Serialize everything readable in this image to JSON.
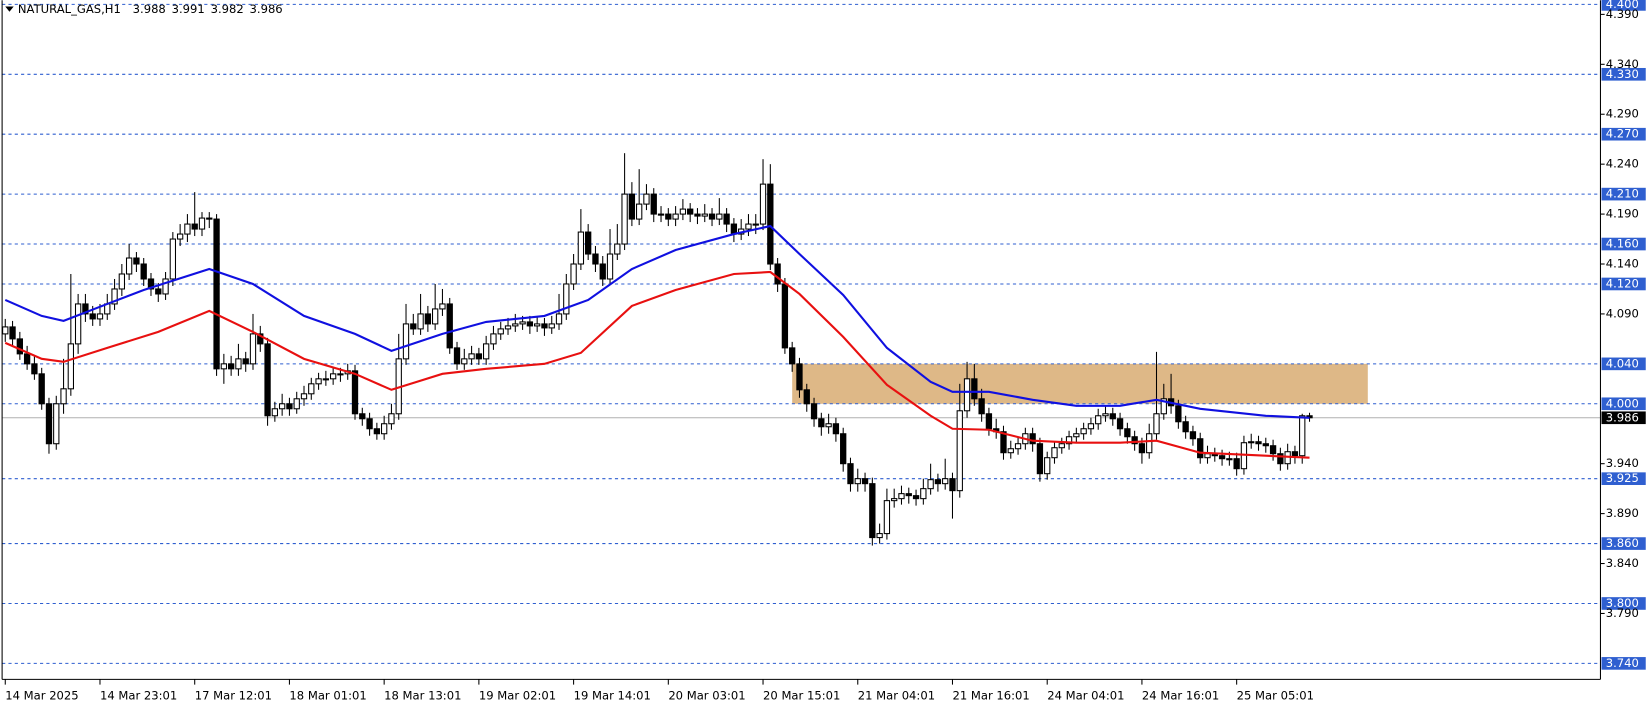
{
  "chart_data": {
    "type": "candlestick",
    "symbol": "NATURAL_GAS,H1",
    "quote": [
      3.988,
      3.991,
      3.982,
      3.986
    ],
    "ylim": [
      3.724,
      4.4042
    ],
    "yticks": [
      {
        "value": 4.39,
        "label": "4.390"
      },
      {
        "value": 4.34,
        "label": "4.340"
      },
      {
        "value": 4.29,
        "label": "4.290"
      },
      {
        "value": 4.24,
        "label": "4.240"
      },
      {
        "value": 4.19,
        "label": "4.190"
      },
      {
        "value": 4.14,
        "label": "4.140"
      },
      {
        "value": 4.09,
        "label": "4.090"
      },
      {
        "value": 3.94,
        "label": "3.940"
      },
      {
        "value": 3.89,
        "label": "3.890"
      },
      {
        "value": 3.84,
        "label": "3.840"
      },
      {
        "value": 3.79,
        "label": "3.790"
      }
    ],
    "levels": [
      {
        "value": 4.4,
        "label": "4.400"
      },
      {
        "value": 4.33,
        "label": "4.330"
      },
      {
        "value": 4.27,
        "label": "4.270"
      },
      {
        "value": 4.21,
        "label": "4.210"
      },
      {
        "value": 4.16,
        "label": "4.160"
      },
      {
        "value": 4.12,
        "label": "4.120"
      },
      {
        "value": 4.04,
        "label": "4.040"
      },
      {
        "value": 4,
        "label": "4.000"
      },
      {
        "value": 3.925,
        "label": "3.925"
      },
      {
        "value": 3.86,
        "label": "3.860"
      },
      {
        "value": 3.8,
        "label": "3.800"
      },
      {
        "value": 3.74,
        "label": "3.740"
      }
    ],
    "level_color": "#2f5fd0",
    "current_price": 3.986,
    "zone": {
      "x_from": 108,
      "x_to": 187,
      "low": 4,
      "high": 4.04,
      "color": "#deb887"
    },
    "x_labels": [
      "14 Mar 2025",
      "14 Mar 23:01",
      "17 Mar 12:01",
      "18 Mar 01:01",
      "18 Mar 13:01",
      "19 Mar 02:01",
      "19 Mar 14:01",
      "20 Mar 03:01",
      "20 Mar 15:01",
      "21 Mar 04:01",
      "21 Mar 16:01",
      "24 Mar 04:01",
      "24 Mar 16:01",
      "25 Mar 05:01"
    ],
    "x_label_step": 13,
    "up_color": "#ffffff",
    "down_color": "#000000",
    "candles": [
      [
        4.07,
        4.085,
        4.062,
        4.077
      ],
      [
        4.077,
        4.083,
        4.058,
        4.065
      ],
      [
        4.065,
        4.072,
        4.044,
        4.05
      ],
      [
        4.05,
        4.058,
        4.034,
        4.04
      ],
      [
        4.04,
        4.048,
        4.024,
        4.03
      ],
      [
        4.03,
        4.036,
        3.994,
        4
      ],
      [
        4,
        4.006,
        3.95,
        3.96
      ],
      [
        3.96,
        4.008,
        3.954,
        4
      ],
      [
        4,
        4.045,
        3.99,
        4.015
      ],
      [
        4.015,
        4.13,
        4.008,
        4.06
      ],
      [
        4.06,
        4.11,
        4.05,
        4.1
      ],
      [
        4.1,
        4.11,
        4.082,
        4.09
      ],
      [
        4.09,
        4.098,
        4.078,
        4.085
      ],
      [
        4.085,
        4.1,
        4.078,
        4.09
      ],
      [
        4.09,
        4.11,
        4.084,
        4.1
      ],
      [
        4.1,
        4.125,
        4.094,
        4.115
      ],
      [
        4.115,
        4.14,
        4.108,
        4.13
      ],
      [
        4.13,
        4.16,
        4.124,
        4.146
      ],
      [
        4.146,
        4.152,
        4.132,
        4.14
      ],
      [
        4.14,
        4.146,
        4.118,
        4.125
      ],
      [
        4.125,
        4.131,
        4.108,
        4.115
      ],
      [
        4.115,
        4.121,
        4.102,
        4.11
      ],
      [
        4.11,
        4.132,
        4.104,
        4.125
      ],
      [
        4.125,
        4.172,
        4.118,
        4.165
      ],
      [
        4.165,
        4.18,
        4.158,
        4.17
      ],
      [
        4.17,
        4.19,
        4.162,
        4.18
      ],
      [
        4.18,
        4.212,
        4.168,
        4.175
      ],
      [
        4.175,
        4.192,
        4.168,
        4.186
      ],
      [
        4.186,
        4.192,
        4.176,
        4.185
      ],
      [
        4.185,
        4.19,
        4.028,
        4.035
      ],
      [
        4.035,
        4.05,
        4.02,
        4.04
      ],
      [
        4.04,
        4.048,
        4.028,
        4.035
      ],
      [
        4.035,
        4.06,
        4.028,
        4.045
      ],
      [
        4.045,
        4.052,
        4.032,
        4.04
      ],
      [
        4.04,
        4.09,
        4.034,
        4.07
      ],
      [
        4.07,
        4.078,
        4.052,
        4.06
      ],
      [
        4.06,
        4.066,
        3.978,
        3.988
      ],
      [
        3.988,
        4.002,
        3.982,
        3.995
      ],
      [
        3.995,
        4.01,
        3.988,
        4
      ],
      [
        4,
        4.006,
        3.988,
        3.995
      ],
      [
        3.995,
        4.012,
        3.99,
        4.005
      ],
      [
        4.005,
        4.018,
        3.998,
        4.01
      ],
      [
        4.01,
        4.026,
        4.004,
        4.02
      ],
      [
        4.02,
        4.031,
        4.014,
        4.025
      ],
      [
        4.025,
        4.033,
        4.018,
        4.025
      ],
      [
        4.025,
        4.037,
        4.019,
        4.03
      ],
      [
        4.03,
        4.036,
        4.022,
        4.03
      ],
      [
        4.03,
        4.04,
        4.024,
        4.033
      ],
      [
        4.033,
        4.039,
        3.984,
        3.99
      ],
      [
        3.99,
        3.996,
        3.978,
        3.985
      ],
      [
        3.985,
        3.991,
        3.968,
        3.975
      ],
      [
        3.975,
        3.981,
        3.964,
        3.97
      ],
      [
        3.97,
        3.988,
        3.964,
        3.98
      ],
      [
        3.98,
        4,
        3.974,
        3.99
      ],
      [
        3.99,
        4.07,
        3.984,
        4.045
      ],
      [
        4.045,
        4.1,
        4.039,
        4.08
      ],
      [
        4.08,
        4.09,
        4.069,
        4.075
      ],
      [
        4.075,
        4.11,
        4.069,
        4.09
      ],
      [
        4.09,
        4.098,
        4.072,
        4.08
      ],
      [
        4.08,
        4.12,
        4.074,
        4.095
      ],
      [
        4.095,
        4.115,
        4.088,
        4.1
      ],
      [
        4.1,
        4.106,
        4.05,
        4.056
      ],
      [
        4.056,
        4.062,
        4.034,
        4.04
      ],
      [
        4.04,
        4.055,
        4.034,
        4.045
      ],
      [
        4.045,
        4.058,
        4.039,
        4.05
      ],
      [
        4.05,
        4.056,
        4.039,
        4.045
      ],
      [
        4.045,
        4.068,
        4.039,
        4.06
      ],
      [
        4.06,
        4.078,
        4.054,
        4.07
      ],
      [
        4.07,
        4.082,
        4.064,
        4.075
      ],
      [
        4.075,
        4.086,
        4.069,
        4.078
      ],
      [
        4.078,
        4.09,
        4.072,
        4.08
      ],
      [
        4.08,
        4.088,
        4.074,
        4.082
      ],
      [
        4.082,
        4.088,
        4.07,
        4.078
      ],
      [
        4.078,
        4.087,
        4.072,
        4.08
      ],
      [
        4.08,
        4.086,
        4.068,
        4.076
      ],
      [
        4.076,
        4.088,
        4.07,
        4.08
      ],
      [
        4.08,
        4.11,
        4.074,
        4.09
      ],
      [
        4.09,
        4.13,
        4.084,
        4.12
      ],
      [
        4.12,
        4.15,
        4.114,
        4.14
      ],
      [
        4.14,
        4.195,
        4.134,
        4.172
      ],
      [
        4.172,
        4.18,
        4.144,
        4.15
      ],
      [
        4.15,
        4.158,
        4.132,
        4.14
      ],
      [
        4.14,
        4.148,
        4.118,
        4.125
      ],
      [
        4.125,
        4.175,
        4.119,
        4.15
      ],
      [
        4.15,
        4.18,
        4.144,
        4.16
      ],
      [
        4.16,
        4.251,
        4.154,
        4.21
      ],
      [
        4.21,
        4.222,
        4.178,
        4.185
      ],
      [
        4.185,
        4.235,
        4.179,
        4.2
      ],
      [
        4.2,
        4.22,
        4.194,
        4.21
      ],
      [
        4.21,
        4.216,
        4.182,
        4.19
      ],
      [
        4.19,
        4.198,
        4.182,
        4.19
      ],
      [
        4.19,
        4.196,
        4.178,
        4.185
      ],
      [
        4.185,
        4.198,
        4.178,
        4.19
      ],
      [
        4.19,
        4.205,
        4.184,
        4.195
      ],
      [
        4.195,
        4.201,
        4.182,
        4.19
      ],
      [
        4.19,
        4.196,
        4.18,
        4.188
      ],
      [
        4.188,
        4.2,
        4.182,
        4.19
      ],
      [
        4.19,
        4.196,
        4.178,
        4.185
      ],
      [
        4.185,
        4.206,
        4.179,
        4.19
      ],
      [
        4.19,
        4.196,
        4.172,
        4.18
      ],
      [
        4.18,
        4.186,
        4.162,
        4.17
      ],
      [
        4.17,
        4.185,
        4.164,
        4.175
      ],
      [
        4.175,
        4.19,
        4.168,
        4.18
      ],
      [
        4.18,
        4.19,
        4.17,
        4.18
      ],
      [
        4.18,
        4.245,
        4.174,
        4.22
      ],
      [
        4.22,
        4.24,
        4.134,
        4.14
      ],
      [
        4.14,
        4.146,
        4.112,
        4.12
      ],
      [
        4.12,
        4.126,
        4.05,
        4.056
      ],
      [
        4.056,
        4.062,
        4.032,
        4.04
      ],
      [
        4.04,
        4.046,
        4.006,
        4.014
      ],
      [
        4.014,
        4.02,
        3.992,
        4
      ],
      [
        4,
        4.006,
        3.977,
        3.985
      ],
      [
        3.985,
        3.991,
        3.968,
        3.977
      ],
      [
        3.977,
        3.99,
        3.97,
        3.98
      ],
      [
        3.98,
        3.986,
        3.962,
        3.97
      ],
      [
        3.97,
        3.976,
        3.932,
        3.94
      ],
      [
        3.94,
        3.946,
        3.912,
        3.92
      ],
      [
        3.92,
        3.935,
        3.912,
        3.925
      ],
      [
        3.925,
        3.931,
        3.912,
        3.92
      ],
      [
        3.92,
        3.926,
        3.858,
        3.866
      ],
      [
        3.866,
        3.88,
        3.86,
        3.87
      ],
      [
        3.87,
        3.915,
        3.864,
        3.903
      ],
      [
        3.903,
        3.915,
        3.896,
        3.905
      ],
      [
        3.905,
        3.918,
        3.899,
        3.91
      ],
      [
        3.91,
        3.916,
        3.9,
        3.908
      ],
      [
        3.908,
        3.914,
        3.898,
        3.905
      ],
      [
        3.905,
        3.925,
        3.899,
        3.915
      ],
      [
        3.915,
        3.94,
        3.909,
        3.924
      ],
      [
        3.924,
        3.93,
        3.912,
        3.92
      ],
      [
        3.92,
        3.945,
        3.914,
        3.925
      ],
      [
        3.925,
        3.931,
        3.885,
        3.913
      ],
      [
        3.913,
        4.02,
        3.906,
        3.993
      ],
      [
        3.993,
        4.042,
        3.986,
        4.025
      ],
      [
        4.025,
        4.04,
        3.998,
        4.005
      ],
      [
        4.005,
        4.015,
        3.982,
        3.99
      ],
      [
        3.99,
        3.996,
        3.968,
        3.975
      ],
      [
        3.975,
        3.985,
        3.965,
        3.972
      ],
      [
        3.972,
        3.978,
        3.944,
        3.951
      ],
      [
        3.951,
        3.963,
        3.945,
        3.955
      ],
      [
        3.955,
        3.966,
        3.949,
        3.96
      ],
      [
        3.96,
        3.976,
        3.954,
        3.97
      ],
      [
        3.97,
        3.976,
        3.952,
        3.96
      ],
      [
        3.96,
        3.966,
        3.922,
        3.93
      ],
      [
        3.93,
        3.952,
        3.924,
        3.946
      ],
      [
        3.946,
        3.962,
        3.94,
        3.956
      ],
      [
        3.956,
        3.966,
        3.95,
        3.96
      ],
      [
        3.96,
        3.973,
        3.954,
        3.967
      ],
      [
        3.967,
        3.976,
        3.961,
        3.97
      ],
      [
        3.97,
        3.981,
        3.964,
        3.975
      ],
      [
        3.975,
        3.986,
        3.969,
        3.98
      ],
      [
        3.98,
        3.995,
        3.974,
        3.988
      ],
      [
        3.988,
        3.998,
        3.982,
        3.99
      ],
      [
        3.99,
        3.996,
        3.978,
        3.985
      ],
      [
        3.985,
        3.991,
        3.968,
        3.975
      ],
      [
        3.975,
        3.981,
        3.96,
        3.967
      ],
      [
        3.967,
        3.973,
        3.953,
        3.96
      ],
      [
        3.96,
        3.966,
        3.94,
        3.951
      ],
      [
        3.951,
        3.98,
        3.945,
        3.97
      ],
      [
        3.97,
        4.052,
        3.964,
        3.99
      ],
      [
        3.99,
        4.02,
        3.984,
        4.005
      ],
      [
        4.005,
        4.03,
        3.99,
        3.998
      ],
      [
        3.998,
        4.004,
        3.975,
        3.982
      ],
      [
        3.982,
        3.988,
        3.965,
        3.972
      ],
      [
        3.972,
        3.978,
        3.958,
        3.965
      ],
      [
        3.965,
        3.971,
        3.94,
        3.946
      ],
      [
        3.946,
        3.958,
        3.94,
        3.95
      ],
      [
        3.95,
        3.956,
        3.942,
        3.948
      ],
      [
        3.948,
        3.954,
        3.938,
        3.945
      ],
      [
        3.945,
        3.952,
        3.938,
        3.945
      ],
      [
        3.945,
        3.951,
        3.928,
        3.935
      ],
      [
        3.935,
        3.968,
        3.929,
        3.961
      ],
      [
        3.961,
        3.97,
        3.955,
        3.962
      ],
      [
        3.962,
        3.968,
        3.953,
        3.96
      ],
      [
        3.96,
        3.966,
        3.951,
        3.958
      ],
      [
        3.958,
        3.964,
        3.943,
        3.95
      ],
      [
        3.95,
        3.956,
        3.933,
        3.94
      ],
      [
        3.94,
        3.96,
        3.934,
        3.952
      ],
      [
        3.952,
        3.958,
        3.94,
        3.948
      ],
      [
        3.948,
        3.99,
        3.94,
        3.988
      ],
      [
        3.988,
        3.991,
        3.982,
        3.986
      ]
    ],
    "series": [
      {
        "color": "#1010e0",
        "x": [
          0,
          5,
          8,
          14,
          19,
          28,
          34,
          41,
          48,
          53,
          60,
          66,
          74,
          80,
          86,
          92,
          100,
          105,
          109,
          115,
          121,
          127,
          130,
          135,
          141,
          147,
          153,
          158,
          164,
          173,
          179
        ],
        "values": [
          4.104,
          4.088,
          4.083,
          4.1,
          4.114,
          4.135,
          4.12,
          4.088,
          4.07,
          4.053,
          4.07,
          4.082,
          4.088,
          4.104,
          4.135,
          4.154,
          4.17,
          4.178,
          4.15,
          4.109,
          4.056,
          4.022,
          4.012,
          4.012,
          4.004,
          3.998,
          3.998,
          4.004,
          3.995,
          3.988,
          3.986
        ]
      },
      {
        "color": "#e81010",
        "x": [
          0,
          5,
          8,
          14,
          21,
          28,
          34,
          41,
          48,
          53,
          60,
          66,
          74,
          79,
          86,
          92,
          100,
          105,
          109,
          115,
          121,
          127,
          130,
          135,
          141,
          147,
          153,
          158,
          164,
          173,
          179
        ],
        "values": [
          4.061,
          4.045,
          4.042,
          4.056,
          4.072,
          4.093,
          4.072,
          4.045,
          4.03,
          4.014,
          4.03,
          4.035,
          4.04,
          4.051,
          4.098,
          4.114,
          4.13,
          4.132,
          4.11,
          4.067,
          4.019,
          3.988,
          3.975,
          3.974,
          3.963,
          3.961,
          3.961,
          3.963,
          3.951,
          3.948,
          3.946
        ]
      }
    ]
  }
}
